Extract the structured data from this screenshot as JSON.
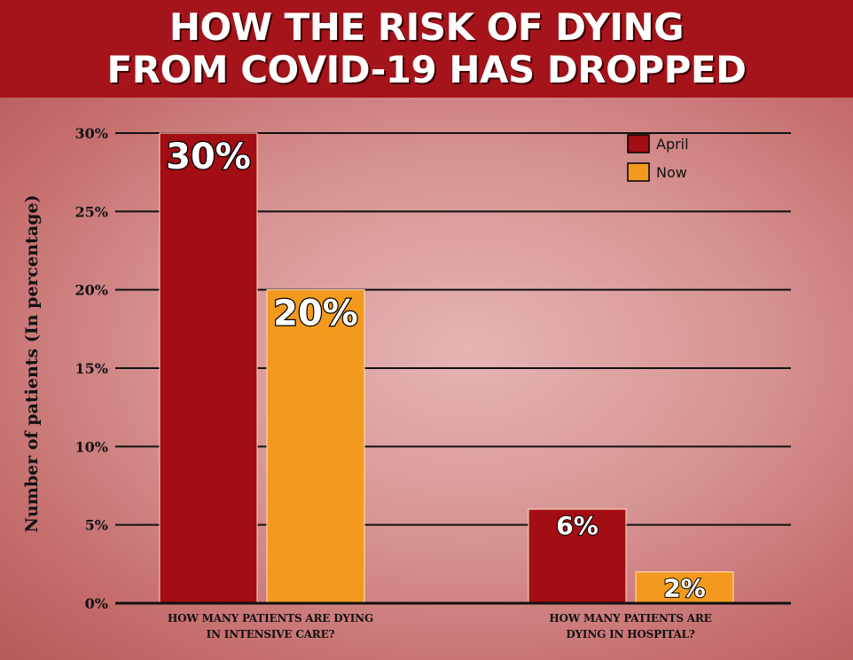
{
  "header": {
    "title_line1": "HOW THE RISK OF DYING",
    "title_line2": "FROM COVID-19 HAS DROPPED"
  },
  "colors": {
    "banner": "#a5141b",
    "april": "#a30d14",
    "now": "#f39a1e"
  },
  "chart_data": {
    "type": "bar",
    "title": "HOW THE RISK OF DYING FROM COVID-19 HAS DROPPED",
    "ylabel": "Number of patients (In percentage)",
    "xlabel": "",
    "ylim": [
      0,
      30
    ],
    "yticks": [
      "0%",
      "5%",
      "10%",
      "15%",
      "20%",
      "25%",
      "30%"
    ],
    "categories": [
      [
        "HOW MANY PATIENTS ARE DYING",
        "IN INTENSIVE CARE?"
      ],
      [
        "HOW MANY PATIENTS ARE",
        "DYING IN HOSPITAL?"
      ]
    ],
    "series": [
      {
        "name": "April",
        "values": [
          30,
          6
        ],
        "labels": [
          "30%",
          "6%"
        ]
      },
      {
        "name": "Now",
        "values": [
          20,
          2
        ],
        "labels": [
          "20%",
          "2%"
        ]
      }
    ],
    "grid": true,
    "legend_position": "top-right"
  }
}
